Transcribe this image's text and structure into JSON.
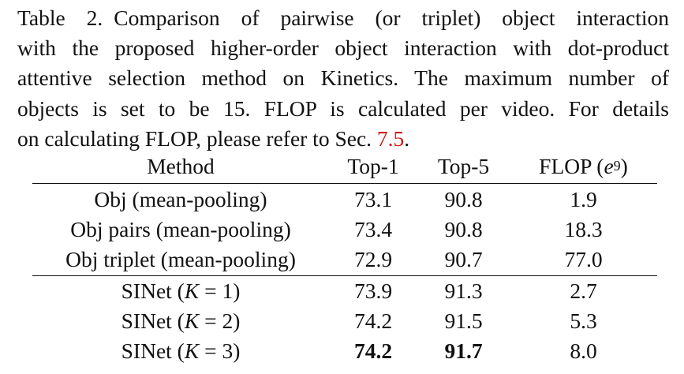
{
  "caption": {
    "label": "Table 2.",
    "line1_rest": "Comparison of pairwise (or triplet) object interaction",
    "line2": "with the proposed higher-order object interaction with dot-product",
    "line3": "attentive selection method on Kinetics. The maximum number of",
    "line4": "objects is set to be 15. FLOP is calculated per video. For details",
    "line5_pre": "on calculating FLOP, please refer to Sec. ",
    "line5_ref": "7.5",
    "line5_post": "."
  },
  "table": {
    "headers": {
      "method": "Method",
      "top1": "Top-1",
      "top5": "Top-5",
      "flop_prefix": "FLOP (",
      "flop_base": "e",
      "flop_exp": "9",
      "flop_suffix": ")"
    },
    "rows": [
      {
        "method": "Obj (mean-pooling)",
        "top1": "73.1",
        "top5": "90.8",
        "flop": "1.9"
      },
      {
        "method": "Obj pairs (mean-pooling)",
        "top1": "73.4",
        "top5": "90.8",
        "flop": "18.3"
      },
      {
        "method": "Obj triplet (mean-pooling)",
        "top1": "72.9",
        "top5": "90.7",
        "flop": "77.0"
      },
      {
        "method_prefix": "SINet (",
        "method_var": "K",
        "method_eq": " = 1)",
        "top1": "73.9",
        "top5": "91.3",
        "flop": "2.7"
      },
      {
        "method_prefix": "SINet (",
        "method_var": "K",
        "method_eq": " = 2)",
        "top1": "74.2",
        "top5": "91.5",
        "flop": "5.3"
      },
      {
        "method_prefix": "SINet (",
        "method_var": "K",
        "method_eq": " = 3)",
        "top1": "74.2",
        "top5": "91.7",
        "flop": "8.0"
      }
    ]
  }
}
